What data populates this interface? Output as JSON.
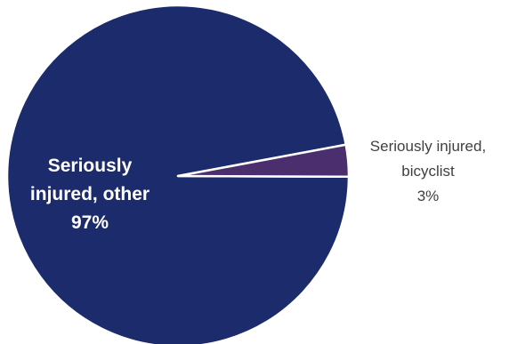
{
  "chart_data": {
    "type": "pie",
    "slices": [
      {
        "label_lines": [
          "Seriously",
          "injured, other"
        ],
        "value_label": "97%",
        "value": 97,
        "color": "#1c2b6b"
      },
      {
        "label_lines": [
          "Seriously injured,",
          "bicyclist"
        ],
        "value_label": "3%",
        "value": 3,
        "color": "#4b2e6e"
      }
    ],
    "start_angle_deg": 4.5,
    "separator_color": "#ffffff",
    "label_text_colors": [
      "#ffffff",
      "#404040"
    ]
  }
}
